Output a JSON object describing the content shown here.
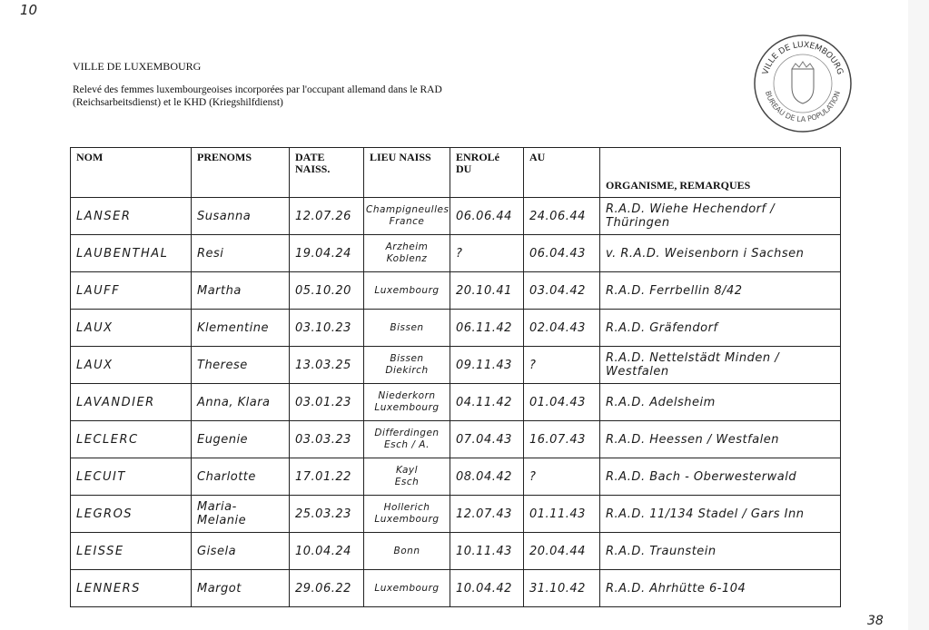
{
  "annotations": {
    "corner_number": "10",
    "page_number": "38"
  },
  "header": {
    "org": "VILLE DE LUXEMBOURG",
    "subtitle": "Relevé des femmes luxembourgeoises incorporées par l'occupant allemand dans le RAD (Reichsarbeitsdienst) et le KHD (Kriegshilfdienst)"
  },
  "stamp": {
    "top_text": "VILLE DE LUXEMBOURG",
    "bottom_text": "BUREAU DE LA POPULATION"
  },
  "table": {
    "columns": [
      "NOM",
      "PRENOMS",
      "DATE NAISS.",
      "LIEU NAISS",
      "ENROLé DU",
      "AU",
      "ORGANISME, REMARQUES"
    ],
    "rows": [
      {
        "nom": "LANSER",
        "prenoms": "Susanna",
        "date": "12.07.26",
        "lieu1": "Champigneulles",
        "lieu2": "France",
        "du": "06.06.44",
        "au": "24.06.44",
        "remarques": "R.A.D. Wiehe Hechendorf / Thüringen"
      },
      {
        "nom": "LAUBENTHAL",
        "prenoms": "Resi",
        "date": "19.04.24",
        "lieu1": "Arzheim",
        "lieu2": "Koblenz",
        "du": "?",
        "au": "06.04.43",
        "remarques": "v. R.A.D. Weisenborn i Sachsen"
      },
      {
        "nom": "LAUFF",
        "prenoms": "Martha",
        "date": "05.10.20",
        "lieu1": "Luxembourg",
        "lieu2": "",
        "du": "20.10.41",
        "au": "03.04.42",
        "remarques": "R.A.D. Ferrbellin 8/42"
      },
      {
        "nom": "LAUX",
        "prenoms": "Klementine",
        "date": "03.10.23",
        "lieu1": "Bissen",
        "lieu2": "",
        "du": "06.11.42",
        "au": "02.04.43",
        "remarques": "R.A.D. Gräfendorf"
      },
      {
        "nom": "LAUX",
        "prenoms": "Therese",
        "date": "13.03.25",
        "lieu1": "Bissen",
        "lieu2": "Diekirch",
        "du": "09.11.43",
        "au": "?",
        "remarques": "R.A.D. Nettelstädt Minden / Westfalen"
      },
      {
        "nom": "LAVANDIER",
        "prenoms": "Anna, Klara",
        "date": "03.01.23",
        "lieu1": "Niederkorn",
        "lieu2": "Luxembourg",
        "du": "04.11.42",
        "au": "01.04.43",
        "remarques": "R.A.D. Adelsheim"
      },
      {
        "nom": "LECLERC",
        "prenoms": "Eugenie",
        "date": "03.03.23",
        "lieu1": "Differdingen",
        "lieu2": "Esch / A.",
        "du": "07.04.43",
        "au": "16.07.43",
        "remarques": "R.A.D. Heessen / Westfalen"
      },
      {
        "nom": "LECUIT",
        "prenoms": "Charlotte",
        "date": "17.01.22",
        "lieu1": "Kayl",
        "lieu2": "Esch",
        "du": "08.04.42",
        "au": "?",
        "remarques": "R.A.D. Bach - Oberwesterwald"
      },
      {
        "nom": "LEGROS",
        "prenoms": "Maria-Melanie",
        "date": "25.03.23",
        "lieu1": "Hollerich",
        "lieu2": "Luxembourg",
        "du": "12.07.43",
        "au": "01.11.43",
        "remarques": "R.A.D. 11/134 Stadel / Gars Inn"
      },
      {
        "nom": "LEISSE",
        "prenoms": "Gisela",
        "date": "10.04.24",
        "lieu1": "Bonn",
        "lieu2": "",
        "du": "10.11.43",
        "au": "20.04.44",
        "remarques": "R.A.D. Traunstein"
      },
      {
        "nom": "LENNERS",
        "prenoms": "Margot",
        "date": "29.06.22",
        "lieu1": "Luxembourg",
        "lieu2": "",
        "du": "10.04.42",
        "au": "31.10.42",
        "remarques": "R.A.D. Ahrhütte 6-104"
      }
    ]
  }
}
